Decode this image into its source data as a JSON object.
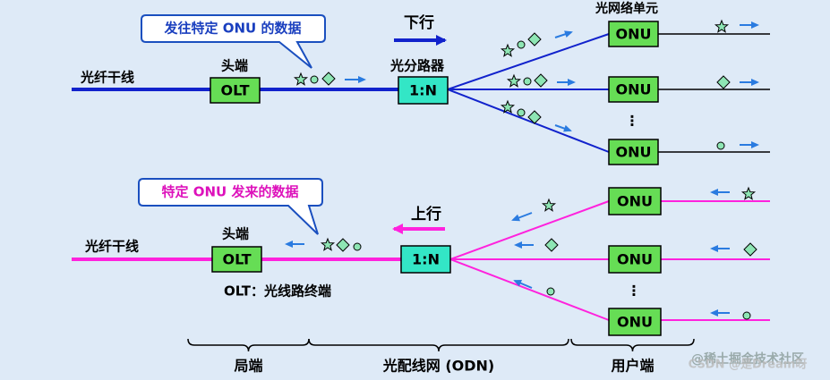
{
  "downstream": {
    "callout": "发往特定 ONU 的数据",
    "direction": "下行",
    "onu_caption": "光网络单元",
    "trunk": "光纤干线",
    "headend": "头端",
    "olt": "OLT",
    "splitter_caption": "光分路器",
    "splitter": "1:N",
    "onus": [
      "ONU",
      "ONU",
      "ONU"
    ]
  },
  "upstream": {
    "callout": "特定 ONU 发来的数据",
    "direction": "上行",
    "trunk": "光纤干线",
    "headend": "头端",
    "olt": "OLT",
    "olt_note": "OLT：光线路终端",
    "splitter": "1:N",
    "onus": [
      "ONU",
      "ONU",
      "ONU"
    ]
  },
  "sections": [
    "局端",
    "光配线网 (ODN)",
    "用户端"
  ],
  "watermark": [
    "@稀土掘金技术社区",
    "CSDN @是Dream呀"
  ]
}
